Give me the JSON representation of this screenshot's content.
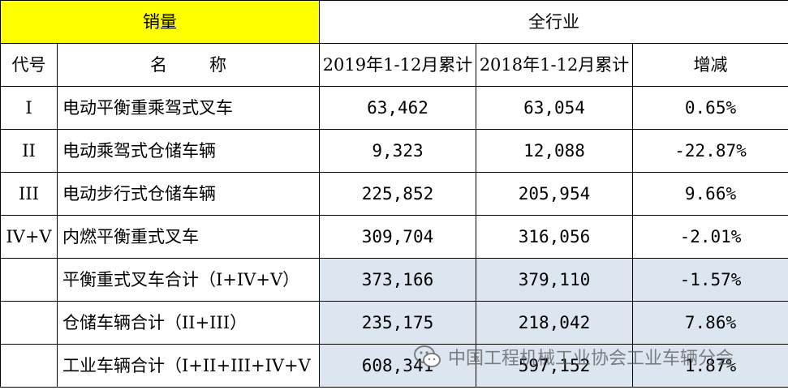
{
  "table": {
    "title_left": "销量",
    "title_right": "全行业",
    "headers": {
      "code": "代号",
      "name_a": "名",
      "name_b": "称",
      "y2019": "2019年1-12月累计",
      "y2018": "2018年1-12月累计",
      "change": "增减"
    },
    "rows": [
      {
        "code": "I",
        "name": "电动平衡重乘驾式叉车",
        "y2019": "63,462",
        "y2018": "63,054",
        "change": "0.65%",
        "subtotal": false
      },
      {
        "code": "II",
        "name": "电动乘驾式仓储车辆",
        "y2019": "9,323",
        "y2018": "12,088",
        "change": "-22.87%",
        "subtotal": false
      },
      {
        "code": "III",
        "name": "电动步行式仓储车辆",
        "y2019": "225,852",
        "y2018": "205,954",
        "change": "9.66%",
        "subtotal": false
      },
      {
        "code": "IV+V",
        "name": "内燃平衡重式叉车",
        "y2019": "309,704",
        "y2018": "316,056",
        "change": "-2.01%",
        "subtotal": false
      },
      {
        "code": "",
        "name": "平衡重式叉车合计（I+IV+V）",
        "y2019": "373,166",
        "y2018": "379,110",
        "change": "-1.57%",
        "subtotal": true
      },
      {
        "code": "",
        "name": "仓储车辆合计（II+III）",
        "y2019": "235,175",
        "y2018": "218,042",
        "change": "7.86%",
        "subtotal": true
      },
      {
        "code": "",
        "name": "工业车辆合计（I+II+III+IV+V",
        "y2019": "608,341",
        "y2018": "597,152",
        "change": "1.87%",
        "subtotal": true
      }
    ]
  },
  "watermark": {
    "icon": "wechat-icon",
    "text": "中国工程机械工业协会工业车辆分会"
  },
  "colors": {
    "title_highlight": "#ffff00",
    "subtotal_fill": "#dce6f1"
  }
}
